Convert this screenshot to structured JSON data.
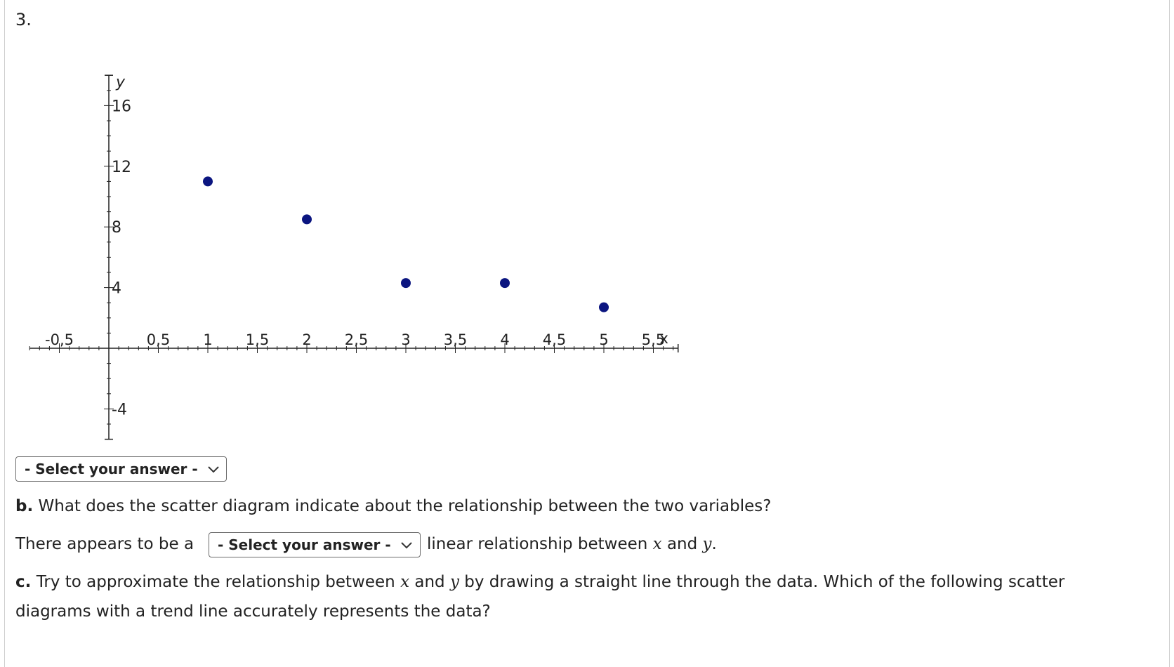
{
  "question_number": "3.",
  "chart_data": {
    "type": "scatter",
    "x": [
      1,
      2,
      3,
      4,
      5
    ],
    "y": [
      11,
      8.5,
      4.3,
      4.3,
      2.7
    ],
    "xlabel": "x",
    "ylabel": "y",
    "x_ticks": [
      "-0,5",
      "0,5",
      "1",
      "1,5",
      "2",
      "2,5",
      "3",
      "3,5",
      "4",
      "4,5",
      "5",
      "5,5"
    ],
    "y_ticks": [
      "16",
      "12",
      "8",
      "4",
      "-4"
    ],
    "xlim": [
      -0.8,
      6.0
    ],
    "ylim": [
      -6,
      19
    ],
    "marker_color": "#0b1580",
    "grid": false
  },
  "part_a": {
    "select_label": "- Select your answer -"
  },
  "part_b": {
    "letter": "b.",
    "question": "What does the scatter diagram indicate about the relationship between the two variables?",
    "sentence_start": "There appears to be a",
    "select_label": "- Select your answer -",
    "sentence_mid": "linear relationship between",
    "var_x": "x",
    "conj": "and",
    "var_y": "y",
    "period": "."
  },
  "part_c": {
    "letter": "c.",
    "line1_a": "Try to approximate the relationship between",
    "var_x": "x",
    "conj": "and",
    "var_y": "y",
    "line1_b": "by drawing a straight line through the data. Which of the following scatter",
    "line2": "diagrams with a trend line accurately represents the data?"
  }
}
